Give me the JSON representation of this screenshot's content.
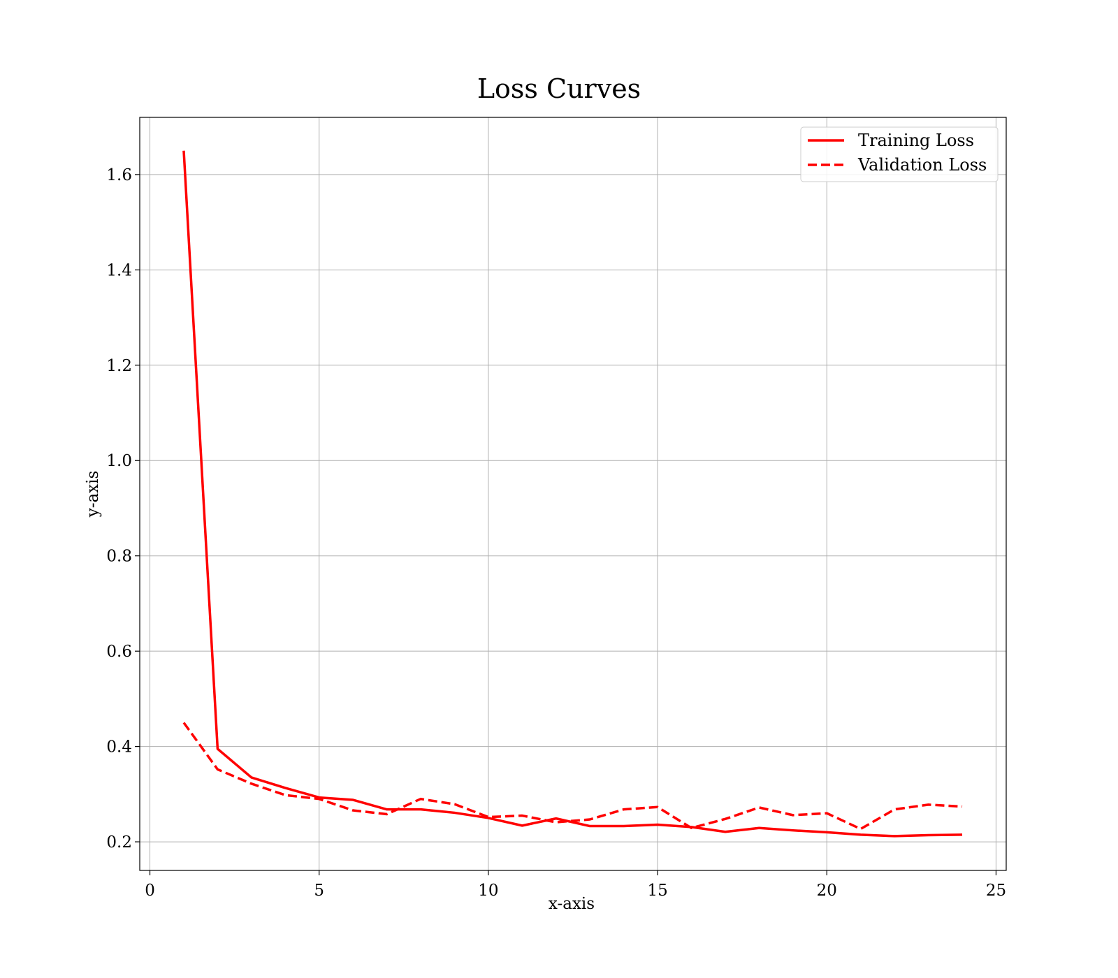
{
  "chart_data": {
    "type": "line",
    "title": "Loss Curves",
    "xlabel": "x-axis",
    "ylabel": "y-axis",
    "xlim": [
      -0.3,
      25.3
    ],
    "ylim": [
      0.14,
      1.72
    ],
    "xticks": [
      0,
      5,
      10,
      15,
      20,
      25
    ],
    "yticks": [
      0.2,
      0.4,
      0.6,
      0.8,
      1.0,
      1.2,
      1.4,
      1.6
    ],
    "ytick_labels": [
      "0.2",
      "0.4",
      "0.6",
      "0.8",
      "1.0",
      "1.2",
      "1.4",
      "1.6"
    ],
    "grid": true,
    "legend_position": "top-right",
    "x": [
      1,
      2,
      3,
      4,
      5,
      6,
      7,
      8,
      9,
      10,
      11,
      12,
      13,
      14,
      15,
      16,
      17,
      18,
      19,
      20,
      21,
      22,
      23,
      24
    ],
    "series": [
      {
        "name": "Training Loss",
        "color": "#ff0000",
        "style": "solid",
        "values": [
          1.65,
          0.395,
          0.335,
          0.313,
          0.293,
          0.288,
          0.268,
          0.268,
          0.261,
          0.25,
          0.234,
          0.249,
          0.233,
          0.233,
          0.236,
          0.231,
          0.221,
          0.229,
          0.224,
          0.22,
          0.215,
          0.212,
          0.214,
          0.215
        ]
      },
      {
        "name": "Validation Loss",
        "color": "#ff0000",
        "style": "dashed",
        "values": [
          0.45,
          0.352,
          0.322,
          0.298,
          0.29,
          0.266,
          0.258,
          0.29,
          0.279,
          0.252,
          0.255,
          0.241,
          0.247,
          0.268,
          0.273,
          0.229,
          0.248,
          0.272,
          0.256,
          0.26,
          0.227,
          0.268,
          0.278,
          0.274
        ]
      }
    ]
  }
}
